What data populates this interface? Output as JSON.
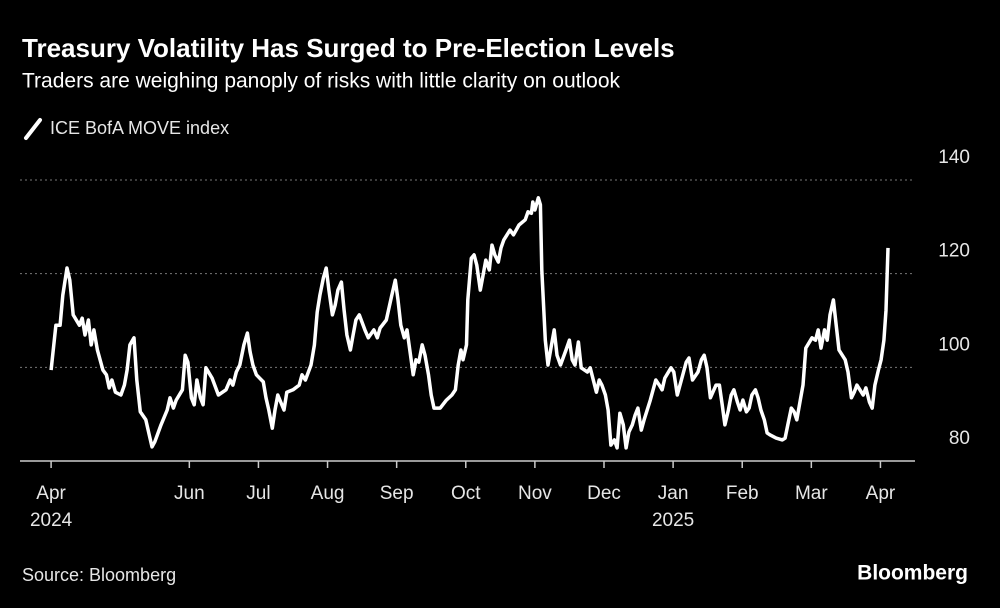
{
  "chart_data": {
    "type": "line",
    "title": "Treasury Volatility Has Surged to Pre-Election Levels",
    "subtitle": "Traders are weighing panoply of risks with little clarity on outlook",
    "source": "Source: Bloomberg",
    "brand": "Bloomberg",
    "xlim": [
      -0.45,
      12.5
    ],
    "ylim": [
      80,
      140
    ],
    "yticks": [
      80,
      100,
      120,
      140
    ],
    "grid": true,
    "xticks": [
      {
        "value": 0,
        "label": "Apr"
      },
      {
        "value": 2,
        "label": "Jun"
      },
      {
        "value": 3,
        "label": "Jul"
      },
      {
        "value": 4,
        "label": "Aug"
      },
      {
        "value": 5,
        "label": "Sep"
      },
      {
        "value": 6,
        "label": "Oct"
      },
      {
        "value": 7,
        "label": "Nov"
      },
      {
        "value": 8,
        "label": "Dec"
      },
      {
        "value": 9,
        "label": "Jan"
      },
      {
        "value": 10,
        "label": "Feb"
      },
      {
        "value": 11,
        "label": "Mar"
      },
      {
        "value": 12,
        "label": "Apr"
      }
    ],
    "x_year_labels": [
      {
        "value": 0,
        "label": "2024"
      },
      {
        "value": 9,
        "label": "2025"
      }
    ],
    "series": [
      {
        "name": "ICE BofA MOVE index",
        "color": "#ffffff",
        "x": [
          0,
          0.07,
          0.13,
          0.17,
          0.23,
          0.27,
          0.32,
          0.41,
          0.45,
          0.49,
          0.54,
          0.58,
          0.62,
          0.67,
          0.75,
          0.8,
          0.84,
          0.88,
          0.93,
          1.01,
          1.06,
          1.1,
          1.14,
          1.2,
          1.24,
          1.29,
          1.37,
          1.42,
          1.46,
          1.5,
          1.59,
          1.68,
          1.72,
          1.77,
          1.81,
          1.9,
          1.94,
          1.98,
          2.03,
          2.07,
          2.11,
          2.16,
          2.2,
          2.24,
          2.33,
          2.42,
          2.53,
          2.59,
          2.63,
          2.68,
          2.73,
          2.79,
          2.84,
          2.88,
          2.92,
          2.97,
          3.07,
          3.11,
          3.15,
          3.2,
          3.24,
          3.28,
          3.37,
          3.41,
          3.5,
          3.59,
          3.63,
          3.68,
          3.76,
          3.81,
          3.85,
          3.89,
          3.94,
          3.98,
          4.02,
          4.07,
          4.11,
          4.15,
          4.2,
          4.24,
          4.28,
          4.33,
          4.37,
          4.41,
          4.46,
          4.54,
          4.59,
          4.67,
          4.72,
          4.76,
          4.85,
          4.93,
          4.98,
          5.02,
          5.06,
          5.11,
          5.15,
          5.19,
          5.24,
          5.28,
          5.32,
          5.37,
          5.41,
          5.46,
          5.5,
          5.54,
          5.63,
          5.72,
          5.8,
          5.85,
          5.89,
          5.93,
          5.96,
          6.01,
          6.03,
          6.08,
          6.12,
          6.16,
          6.21,
          6.25,
          6.29,
          6.34,
          6.38,
          6.42,
          6.47,
          6.51,
          6.55,
          6.64,
          6.69,
          6.77,
          6.86,
          6.9,
          6.95,
          6.97,
          7.0,
          7.05,
          7.08,
          7.1,
          7.15,
          7.19,
          7.24,
          7.28,
          7.32,
          7.37,
          7.45,
          7.5,
          7.54,
          7.58,
          7.63,
          7.67,
          7.76,
          7.8,
          7.89,
          7.93,
          7.97,
          8.02,
          8.06,
          8.1,
          8.15,
          8.19,
          8.23,
          8.28,
          8.32,
          8.36,
          8.41,
          8.45,
          8.49,
          8.54,
          8.58,
          8.67,
          8.75,
          8.8,
          8.84,
          8.88,
          8.97,
          9.01,
          9.06,
          9.14,
          9.19,
          9.23,
          9.28,
          9.36,
          9.41,
          9.45,
          9.49,
          9.54,
          9.62,
          9.67,
          9.71,
          9.75,
          9.8,
          9.84,
          9.88,
          9.93,
          9.97,
          10.01,
          10.06,
          10.1,
          10.14,
          10.19,
          10.23,
          10.27,
          10.32,
          10.36,
          10.4,
          10.49,
          10.58,
          10.62,
          10.66,
          10.71,
          10.75,
          10.79,
          10.84,
          10.88,
          10.92,
          11.01,
          11.06,
          11.1,
          11.14,
          11.19,
          11.23,
          11.27,
          11.32,
          11.36,
          11.4,
          11.49,
          11.53,
          11.58,
          11.62,
          11.66,
          11.75,
          11.79,
          11.84,
          11.88,
          11.92,
          11.97,
          12.01,
          12.05,
          12.08,
          12.11
        ],
        "values": [
          99.4,
          109.0,
          109.0,
          115.4,
          121.2,
          118.6,
          111.2,
          109.0,
          110.5,
          106.9,
          110.1,
          104.8,
          108.0,
          103.7,
          99.4,
          98.4,
          95.6,
          97.3,
          94.7,
          94.1,
          96.2,
          99.4,
          104.8,
          106.3,
          97.3,
          90.5,
          88.8,
          85.6,
          83.0,
          84.1,
          87.7,
          90.9,
          93.5,
          91.3,
          93.0,
          95.2,
          102.6,
          101.1,
          93.5,
          92.0,
          97.3,
          93.5,
          92.0,
          99.9,
          97.7,
          94.1,
          95.2,
          97.3,
          96.2,
          99.0,
          100.5,
          104.8,
          107.3,
          103.3,
          100.5,
          98.4,
          96.9,
          93.5,
          90.9,
          87.0,
          90.9,
          94.1,
          90.9,
          94.7,
          95.2,
          96.2,
          98.4,
          97.3,
          100.5,
          104.8,
          111.8,
          115.4,
          119.1,
          121.2,
          116.5,
          111.2,
          113.3,
          116.5,
          118.2,
          112.2,
          106.9,
          103.7,
          106.9,
          110.1,
          111.2,
          108.0,
          106.3,
          108.0,
          106.3,
          108.4,
          110.1,
          115.4,
          118.6,
          114.4,
          109.0,
          106.3,
          108.0,
          103.7,
          98.4,
          101.6,
          101.1,
          104.8,
          102.6,
          98.4,
          94.1,
          91.3,
          91.3,
          93.0,
          94.1,
          95.2,
          100.5,
          103.7,
          101.6,
          104.8,
          114.4,
          123.3,
          124.0,
          121.8,
          116.5,
          119.7,
          122.9,
          120.8,
          126.1,
          124.0,
          122.5,
          125.5,
          127.2,
          129.3,
          128.3,
          130.4,
          131.5,
          133.2,
          132.9,
          135.3,
          133.6,
          136.2,
          134.7,
          120.8,
          105.8,
          100.5,
          104.8,
          108.0,
          102.6,
          100.5,
          103.7,
          105.8,
          101.6,
          100.5,
          105.4,
          99.9,
          99.0,
          99.9,
          94.7,
          97.3,
          96.2,
          94.1,
          90.9,
          83.4,
          84.5,
          82.8,
          90.2,
          87.7,
          82.8,
          86.2,
          87.7,
          89.8,
          91.3,
          86.6,
          88.8,
          93.0,
          97.3,
          96.2,
          95.2,
          97.7,
          99.9,
          99.0,
          94.1,
          98.4,
          101.1,
          102.0,
          97.3,
          99.0,
          101.6,
          102.6,
          99.9,
          93.5,
          96.2,
          96.2,
          92.0,
          87.7,
          90.9,
          94.1,
          95.2,
          92.6,
          90.9,
          93.0,
          90.5,
          91.3,
          94.1,
          95.2,
          93.5,
          90.9,
          88.8,
          86.0,
          85.6,
          84.9,
          84.5,
          84.9,
          87.7,
          91.3,
          90.5,
          88.8,
          93.0,
          96.2,
          104.1,
          106.3,
          105.8,
          108.0,
          104.1,
          108.0,
          105.8,
          111.2,
          114.4,
          109.0,
          103.7,
          101.6,
          99.0,
          93.5,
          94.7,
          96.2,
          94.1,
          95.6,
          92.6,
          91.3,
          96.2,
          99.4,
          101.6,
          105.8,
          112.2,
          125.5
        ]
      }
    ]
  }
}
